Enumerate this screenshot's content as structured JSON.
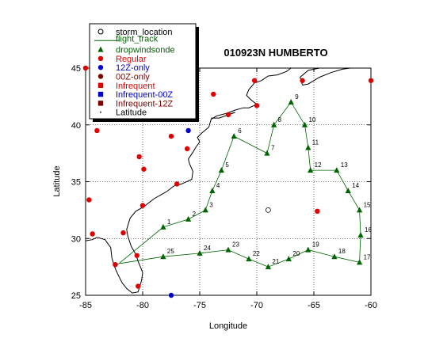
{
  "chart_data": {
    "type": "scatter",
    "title": "010923N HUMBERTO",
    "xlabel": "Longitude",
    "ylabel": "Latitude",
    "xlim": [
      -85,
      -60
    ],
    "ylim": [
      25,
      45
    ],
    "xticks": [
      -85,
      -80,
      -75,
      -70,
      -65,
      -60
    ],
    "yticks": [
      25,
      30,
      35,
      40,
      45
    ],
    "grid": true,
    "legend_position": "top-left",
    "legend": [
      {
        "label": "storm_location",
        "marker": "open-circle",
        "color": "#000000"
      },
      {
        "label": "flight_track",
        "marker": "line",
        "color": "#006400"
      },
      {
        "label": "dropwindsonde",
        "marker": "triangle",
        "color": "#006400"
      },
      {
        "label": "Regular",
        "marker": "circle",
        "color": "#e00000"
      },
      {
        "label": "12Z-only",
        "marker": "circle",
        "color": "#0000d0"
      },
      {
        "label": "00Z-only",
        "marker": "circle",
        "color": "#800000"
      },
      {
        "label": "Infrequent",
        "marker": "square",
        "color": "#e00000"
      },
      {
        "label": "Infrequent-00Z",
        "marker": "square",
        "color": "#0000d0"
      },
      {
        "label": "Infrequent-12Z",
        "marker": "square",
        "color": "#800000"
      },
      {
        "label": "Latitude",
        "marker": "dot",
        "color": "#000000"
      }
    ],
    "storm_location": {
      "lon": -69.0,
      "lat": 32.5
    },
    "dropwindsondes": [
      {
        "label": "1",
        "lon": -78.2,
        "lat": 31.0
      },
      {
        "label": "2",
        "lon": -76.0,
        "lat": 31.7
      },
      {
        "label": "3",
        "lon": -74.5,
        "lat": 32.5
      },
      {
        "label": "4",
        "lon": -73.9,
        "lat": 34.2
      },
      {
        "label": "5",
        "lon": -73.1,
        "lat": 36.0
      },
      {
        "label": "6",
        "lon": -72.0,
        "lat": 39.0
      },
      {
        "label": "7",
        "lon": -69.1,
        "lat": 37.5
      },
      {
        "label": "8",
        "lon": -68.5,
        "lat": 40.0
      },
      {
        "label": "9",
        "lon": -67.0,
        "lat": 42.0
      },
      {
        "label": "10",
        "lon": -65.8,
        "lat": 40.0
      },
      {
        "label": "11",
        "lon": -65.5,
        "lat": 38.0
      },
      {
        "label": "12",
        "lon": -65.3,
        "lat": 36.0
      },
      {
        "label": "13",
        "lon": -63.0,
        "lat": 36.0
      },
      {
        "label": "14",
        "lon": -62.0,
        "lat": 34.2
      },
      {
        "label": "15",
        "lon": -61.0,
        "lat": 32.5
      },
      {
        "label": "16",
        "lon": -60.9,
        "lat": 30.3
      },
      {
        "label": "17",
        "lon": -61.0,
        "lat": 27.9
      },
      {
        "label": "18",
        "lon": -63.2,
        "lat": 28.4
      },
      {
        "label": "19",
        "lon": -65.5,
        "lat": 29.0
      },
      {
        "label": "20",
        "lon": -67.2,
        "lat": 28.2
      },
      {
        "label": "21",
        "lon": -69.0,
        "lat": 27.5
      },
      {
        "label": "22",
        "lon": -70.7,
        "lat": 28.2
      },
      {
        "label": "23",
        "lon": -72.5,
        "lat": 29.0
      },
      {
        "label": "24",
        "lon": -75.0,
        "lat": 28.7
      },
      {
        "label": "25",
        "lon": -78.2,
        "lat": 28.4
      }
    ],
    "track_start": {
      "lon": -82.2,
      "lat": 27.7
    },
    "track_end": {
      "lon": -82.0,
      "lat": 27.8
    },
    "regular_sites": [
      {
        "lon": -85.0,
        "lat": 45.0
      },
      {
        "lon": -70.2,
        "lat": 43.9
      },
      {
        "lon": -66.0,
        "lat": 43.9
      },
      {
        "lon": -60.0,
        "lat": 43.9
      },
      {
        "lon": -73.8,
        "lat": 42.7
      },
      {
        "lon": -70.0,
        "lat": 41.7
      },
      {
        "lon": -72.5,
        "lat": 40.9
      },
      {
        "lon": -84.0,
        "lat": 39.5
      },
      {
        "lon": -77.5,
        "lat": 39.0
      },
      {
        "lon": -76.1,
        "lat": 37.9
      },
      {
        "lon": -80.3,
        "lat": 37.2
      },
      {
        "lon": -79.9,
        "lat": 36.1
      },
      {
        "lon": -77.0,
        "lat": 34.8
      },
      {
        "lon": -84.7,
        "lat": 33.4
      },
      {
        "lon": -80.0,
        "lat": 32.9
      },
      {
        "lon": -64.7,
        "lat": 32.4
      },
      {
        "lon": -81.7,
        "lat": 30.5
      },
      {
        "lon": -84.4,
        "lat": 30.4
      },
      {
        "lon": -80.5,
        "lat": 28.5
      },
      {
        "lon": -82.4,
        "lat": 27.7
      },
      {
        "lon": -80.4,
        "lat": 25.8
      }
    ],
    "twelve_z_sites": [
      {
        "lon": -76.0,
        "lat": 39.5
      },
      {
        "lon": -77.5,
        "lat": 25.0
      }
    ],
    "zero_z_sites": []
  }
}
